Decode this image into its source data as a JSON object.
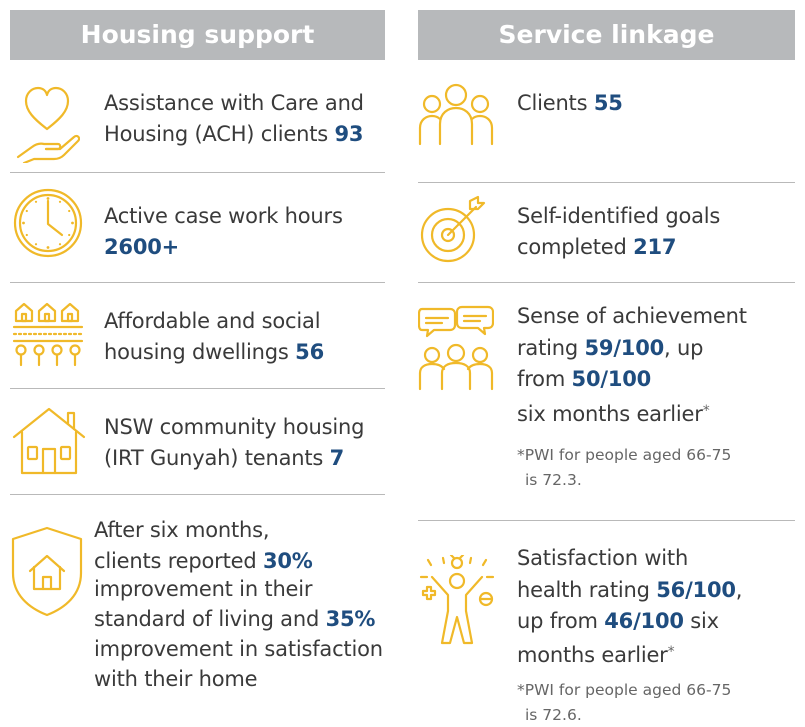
{
  "housing": {
    "header": "Housing support",
    "items": [
      {
        "icon": "heart-hand-icon",
        "line1": "Assistance with Care and",
        "line2_pre": "Housing (ACH) clients ",
        "value": "93"
      },
      {
        "icon": "clock-icon",
        "line1": "Active case work hours",
        "value": "2600+"
      },
      {
        "icon": "houses-community-icon",
        "line1": "Affordable and social",
        "line2_pre": "housing dwellings ",
        "value": "56"
      },
      {
        "icon": "house-icon",
        "line1": "NSW community housing",
        "line2_pre": "(IRT Gunyah) tenants ",
        "value": "7"
      }
    ],
    "outcome": {
      "icon": "shield-house-icon",
      "l1": "After six months,",
      "l2_pre": "clients reported ",
      "v1": "30%",
      "l3": "improvement in their",
      "l4_pre": "standard of living and ",
      "v2": "35%",
      "l5": "improvement in satisfaction",
      "l6": "with their home"
    }
  },
  "service": {
    "header": "Service linkage",
    "clients": {
      "icon": "people-group-icon",
      "label": "Clients ",
      "value": "55"
    },
    "goals": {
      "icon": "target-icon",
      "line1": "Self-identified goals",
      "line2_pre": "completed ",
      "value": "217"
    },
    "achievement": {
      "icon": "people-chat-icon",
      "l1": "Sense of achievement",
      "l2_pre": "rating ",
      "v1": "59/100",
      "l2_post": ", up",
      "l3_pre": "from ",
      "v2": "50/100",
      "l4": "six months earlier",
      "star": "*",
      "note1": "*PWI for people aged 66-75",
      "note2": "is 72.3."
    },
    "satisfaction": {
      "icon": "health-person-icon",
      "l1": "Satisfaction with",
      "l2_pre": "health rating ",
      "v1": "56/100",
      "l2_post": ",",
      "l3_pre": "up from ",
      "v2": "46/100",
      "l3_post": " six",
      "l4": "months earlier",
      "star": "*",
      "note1": "*PWI for people aged 66-75",
      "note2": "is 72.6."
    }
  }
}
